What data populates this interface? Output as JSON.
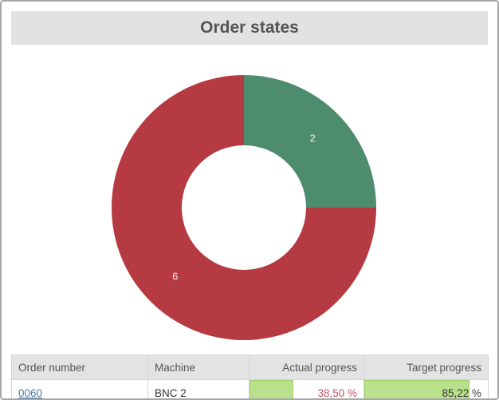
{
  "header": {
    "title": "Order states"
  },
  "chart_data": {
    "type": "pie",
    "subtype": "donut",
    "title": "Order states",
    "values": [
      2,
      6
    ],
    "slice_labels": [
      "2",
      "6"
    ],
    "colors": [
      "#4d8c6d",
      "#b53a42"
    ],
    "start_angle_deg": 0,
    "direction": "clockwise",
    "legend": "none",
    "inner_radius_ratio": 0.47
  },
  "table": {
    "columns": [
      {
        "label": "Order number",
        "align": "left"
      },
      {
        "label": "Machine",
        "align": "left"
      },
      {
        "label": "Actual progress",
        "align": "right"
      },
      {
        "label": "Target progress",
        "align": "right"
      }
    ],
    "rows": [
      {
        "order_number": "0060",
        "machine": "BNC 2",
        "actual_progress": "38,50 %",
        "actual_progress_pct": 38.5,
        "target_progress": "85,22 %",
        "target_progress_pct": 85.22
      }
    ]
  },
  "colors": {
    "chart_green": "#4d8c6d",
    "chart_red": "#b53a42",
    "progress_fill": "#b9e18c",
    "progress_border": "#a4d16e",
    "actual_progress_text": "#c05666",
    "link": "#4a7ba6",
    "header_bg": "#e2e2e2"
  }
}
